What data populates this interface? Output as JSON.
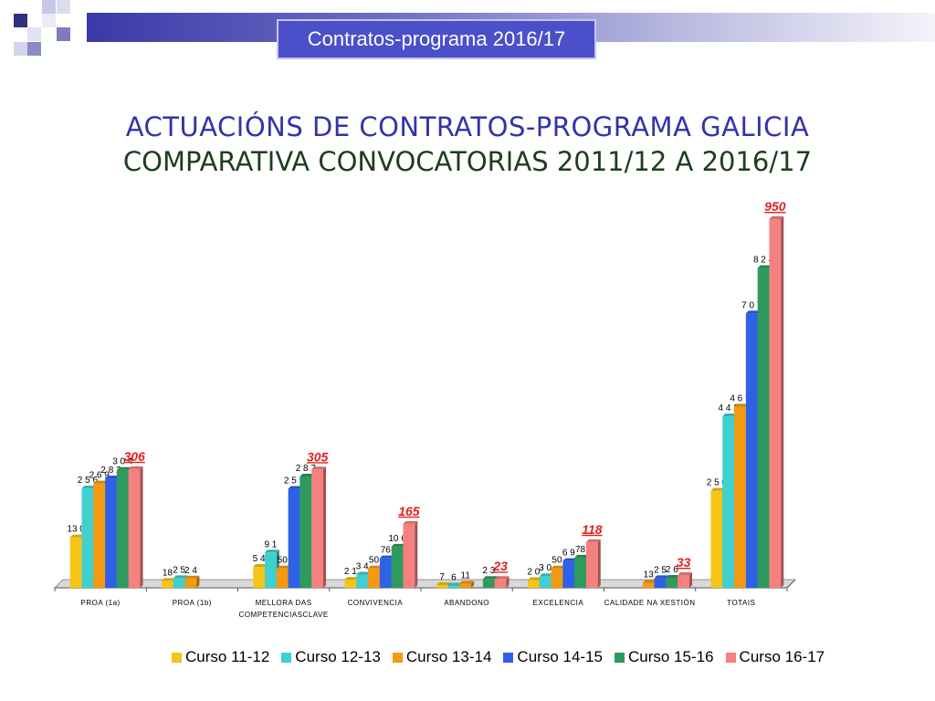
{
  "header": {
    "label": "Contratos-programa 2016/17"
  },
  "title_line1": "ACTUACIÓNS DE CONTRATOS-PROGRAMA GALICIA",
  "title_line2": "COMPARATIVA CONVOCATORIAS 2011/12 A 2016/17",
  "chart_data": {
    "type": "bar",
    "categories": [
      "PROA (1a)",
      "PROA (1b)",
      "MELLORA DAS COMPETENCIASCLAVE",
      "CONVIVENCIA",
      "ABANDONO",
      "EXCELENCIA",
      "CALIDADE NA XESTIÓN",
      "TOTAIS"
    ],
    "category_label_lines": [
      [
        "PROA (1a)"
      ],
      [
        "PROA (1b)"
      ],
      [
        "MELLORA DAS",
        "COMPETENCIASCLAVE"
      ],
      [
        "CONVIVENCIA"
      ],
      [
        "ABANDONO"
      ],
      [
        "EXCELENCIA"
      ],
      [
        "CALIDADE NA XESTIÓN"
      ],
      [
        "TOTAIS"
      ]
    ],
    "series": [
      {
        "name": "Curso 11-12",
        "color": "#f5c518",
        "values": [
          130,
          18,
          54,
          21,
          7,
          20,
          0,
          250
        ],
        "labels": [
          "13 0",
          "18",
          "5 4",
          "2 1",
          "7",
          "2 0",
          "",
          "2 5 0"
        ]
      },
      {
        "name": "Curso 12-13",
        "color": "#40d0d0",
        "values": [
          256,
          25,
          91,
          34,
          6,
          30,
          0,
          442
        ],
        "labels": [
          "2 5 6",
          "2 5",
          "9 1",
          "3 4",
          "6",
          "3 0",
          "",
          "4 4 2"
        ]
      },
      {
        "name": "Curso 13-14",
        "color": "#f59a10",
        "values": [
          269,
          24,
          50,
          50,
          11,
          50,
          13,
          467
        ],
        "labels": [
          "2 6 9",
          "2 4",
          "50",
          "50",
          "11",
          "50",
          "13",
          "4 6 7"
        ]
      },
      {
        "name": "Curso 14-15",
        "color": "#2e62e6",
        "values": [
          282,
          0,
          255,
          76,
          0,
          69,
          25,
          707
        ],
        "labels": [
          "2 8 2",
          "",
          "2 5 5",
          "76",
          "",
          "6 9",
          "2 5",
          "7 0 7"
        ]
      },
      {
        "name": "Curso 15-16",
        "color": "#2e9a5e",
        "values": [
          304,
          0,
          287,
          106,
          23,
          78,
          26,
          824
        ],
        "labels": [
          "3 0 4",
          "",
          "2 8 7",
          "10 6",
          "2 3",
          "78",
          "2 6",
          "8 2 4"
        ]
      },
      {
        "name": "Curso 16-17",
        "color": "#f58080",
        "values": [
          306,
          0,
          305,
          165,
          23,
          118,
          33,
          950
        ],
        "labels": [
          "",
          "",
          "",
          "",
          "",
          "",
          "",
          ""
        ]
      }
    ],
    "highlight_labels": [
      "306",
      "",
      "305",
      "165",
      "23",
      "118",
      "33",
      "950"
    ],
    "highlight_color": "#e02020",
    "ylim": [
      0,
      950
    ],
    "xlabel": "",
    "ylabel": "",
    "legend_position": "bottom"
  }
}
